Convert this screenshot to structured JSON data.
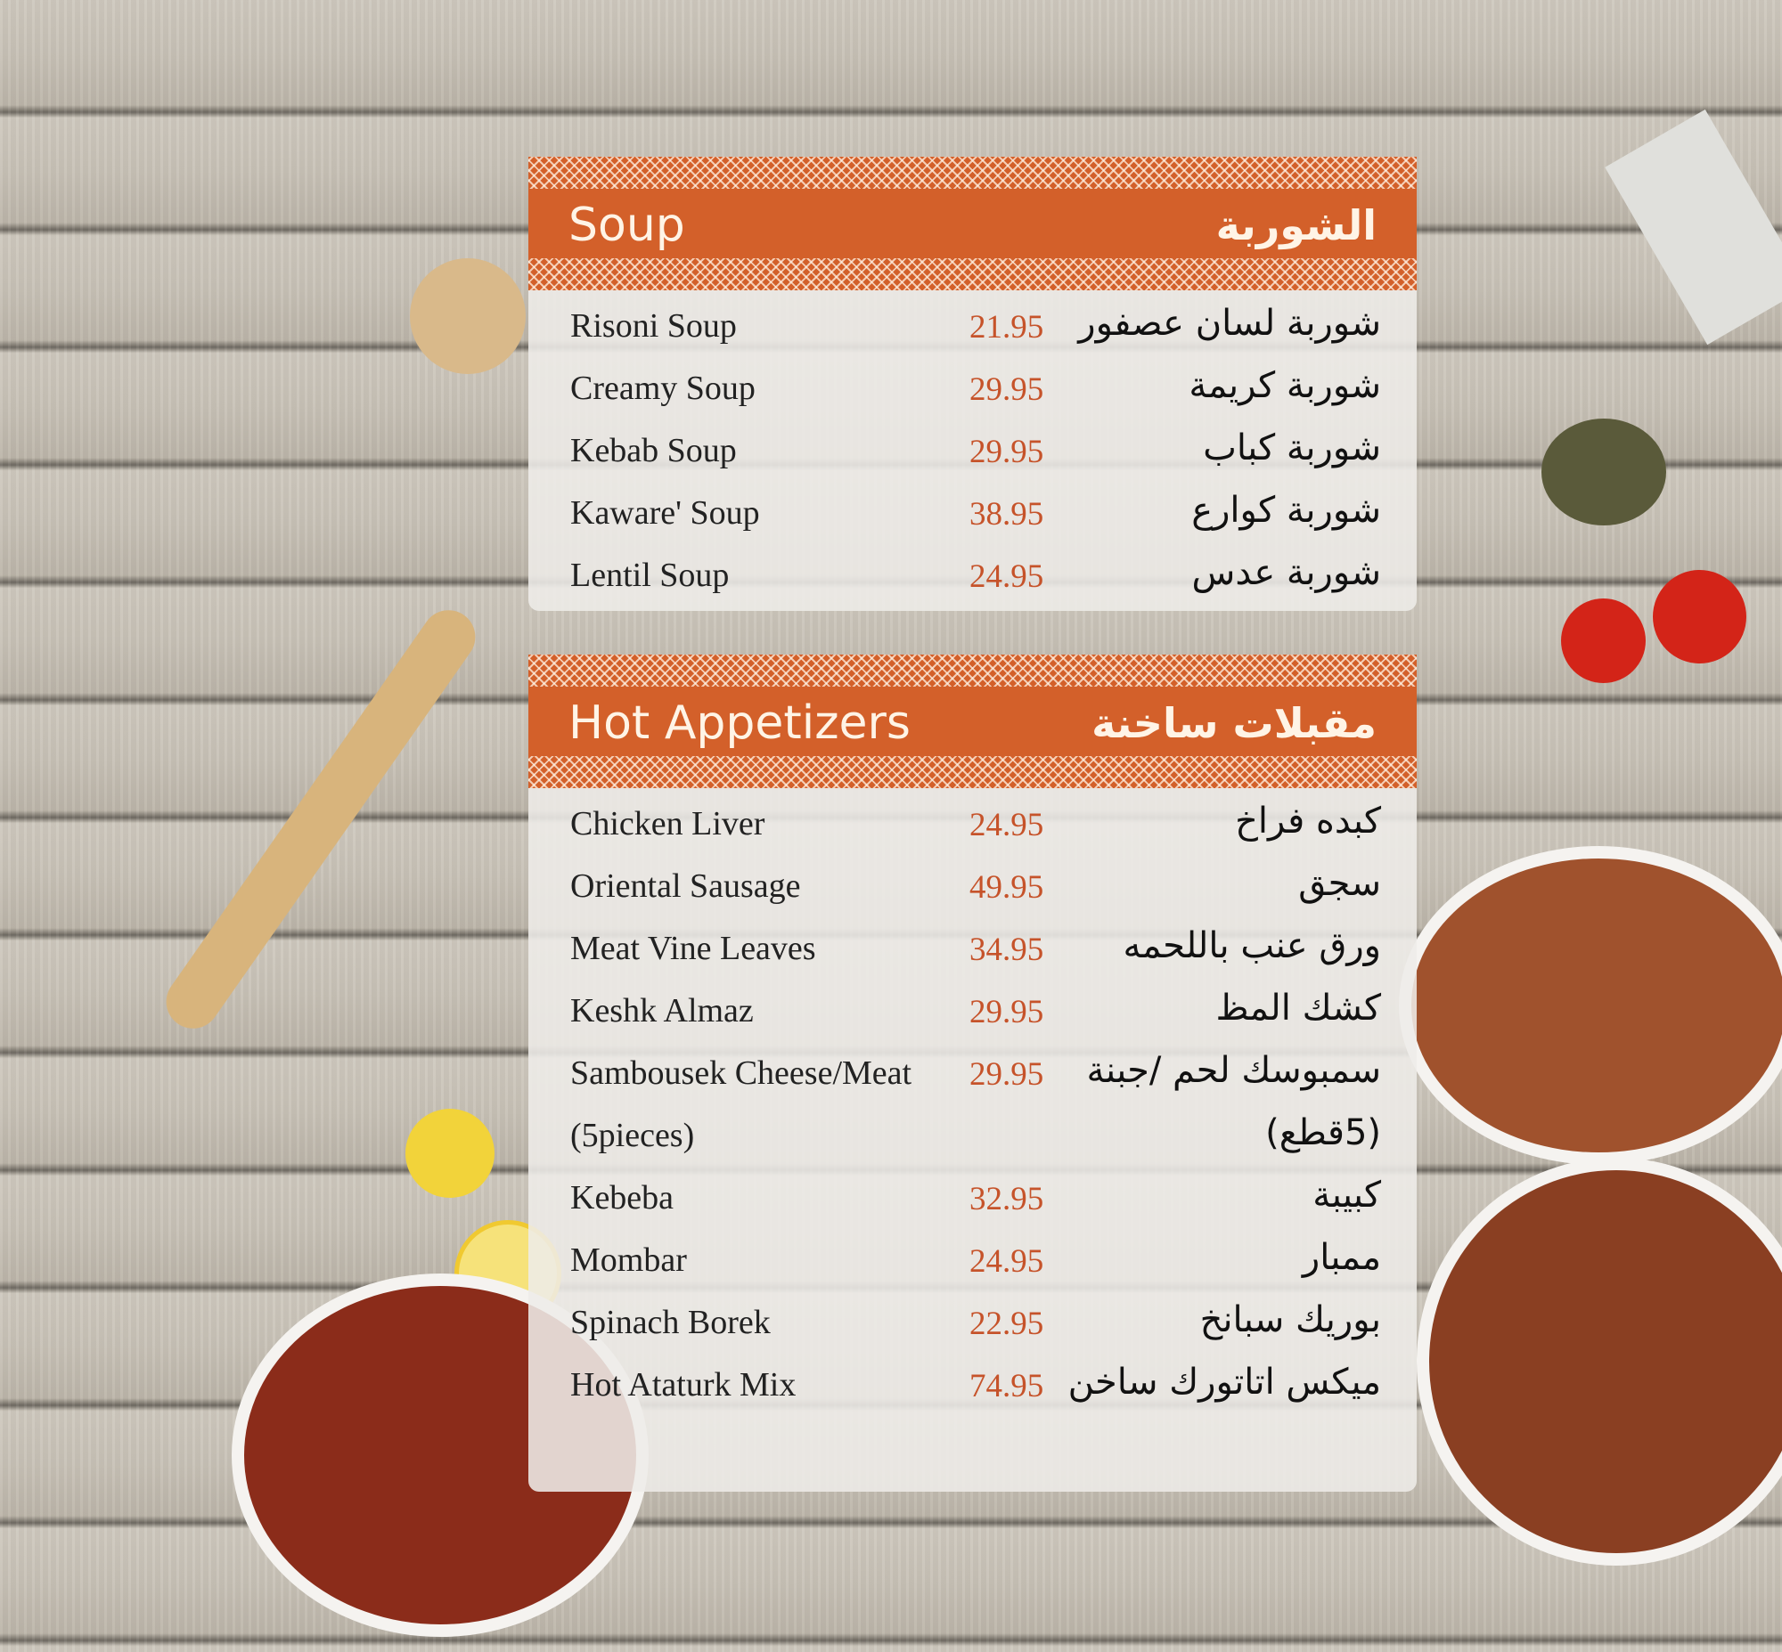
{
  "sections": [
    {
      "title": "Soup",
      "title_ar": "الشوربة",
      "items": [
        {
          "name": "Risoni Soup",
          "price": "21.95",
          "name_ar": "شوربة لسان عصفور"
        },
        {
          "name": "Creamy Soup",
          "price": "29.95",
          "name_ar": "شوربة كريمة"
        },
        {
          "name": "Kebab Soup",
          "price": "29.95",
          "name_ar": "شوربة كباب"
        },
        {
          "name": "Kaware' Soup",
          "price": "38.95",
          "name_ar": "شوربة كوارع"
        },
        {
          "name": "Lentil Soup",
          "price": "24.95",
          "name_ar": "شوربة عدس"
        }
      ]
    },
    {
      "title": "Hot Appetizers",
      "title_ar": "مقبلات ساخنة",
      "items": [
        {
          "name": "Chicken Liver",
          "price": "24.95",
          "name_ar": "كبده فراخ"
        },
        {
          "name": "Oriental Sausage",
          "price": "49.95",
          "name_ar": "سجق"
        },
        {
          "name": "Meat Vine Leaves",
          "price": "34.95",
          "name_ar": "ورق عنب باللحمه"
        },
        {
          "name": "Keshk Almaz",
          "price": "29.95",
          "name_ar": "كشك المظ"
        },
        {
          "name": "Sambousek Cheese/Meat",
          "price": "29.95",
          "name_ar": "سمبوسك لحم /جبنة"
        },
        {
          "name": "(5pieces)",
          "price": "",
          "name_ar": "(5قطع)"
        },
        {
          "name": "Kebeba",
          "price": "32.95",
          "name_ar": "كبيبة"
        },
        {
          "name": "Mombar",
          "price": "24.95",
          "name_ar": "ممبار"
        },
        {
          "name": "Spinach Borek",
          "price": "22.95",
          "name_ar": "بوريك سبانخ"
        },
        {
          "name": "Hot Ataturk Mix",
          "price": "74.95",
          "name_ar": "ميكس اتاتورك ساخن"
        }
      ]
    }
  ],
  "colors": {
    "accent": "#d3602a",
    "price": "#c6532a"
  }
}
